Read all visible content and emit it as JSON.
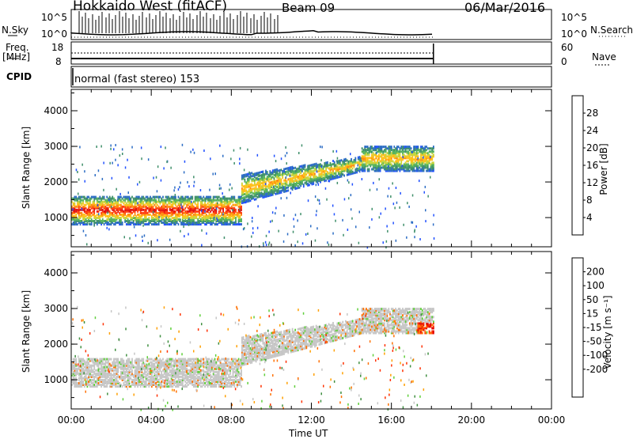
{
  "header": {
    "station": "Hokkaido West (fitACF)",
    "beam": "Beam 09",
    "date": "06/Mar/2016"
  },
  "side_labels": {
    "nsky": "N.Sky",
    "nsearch": "N.Search",
    "freq_top": "Freq.",
    "freq_unit": "[MHz]",
    "nave": "Nave",
    "cpid": "CPID"
  },
  "aux_ticks": {
    "nsky_left": [
      "10^5",
      "10^0"
    ],
    "nsky_right": [
      "10^5",
      "10^0"
    ],
    "freq_left": [
      "18",
      "8"
    ],
    "freq_right": [
      "60",
      "0"
    ]
  },
  "cpid_text": "normal (fast stereo) 153",
  "colors": {
    "power": [
      "#2050ff",
      "#2b6cc4",
      "#3f8f6a",
      "#55b35c",
      "#c8d43c",
      "#ffc018",
      "#ff8a10",
      "#ff4010",
      "#e01010"
    ],
    "velocity": [
      "#2040c0",
      "#2a7fb8",
      "#3f8f40",
      "#5fcf3a",
      "#c6c6c6",
      "#c6c6c6",
      "#ffa000",
      "#ff7000",
      "#ff3000",
      "#e00000"
    ]
  },
  "chart_data": [
    {
      "type": "heatmap",
      "name": "power",
      "xlabel": "",
      "ylabel": "Slant Range [km]",
      "xlim": [
        "00:00",
        "24:00"
      ],
      "ylim": [
        180,
        4600
      ],
      "yticks": [
        "4000",
        "3000",
        "2000",
        "1000"
      ],
      "colorbar": {
        "label": "Power [dB]",
        "ticks": [
          "28",
          "24",
          "20",
          "16",
          "12",
          "8",
          "4"
        ],
        "range": [
          0,
          32
        ]
      },
      "data_end_hour": 18.1,
      "bands": [
        {
          "from_hour": 0,
          "to_hour": 8.5,
          "range_km": [
            800,
            1600
          ],
          "value": "16-24"
        },
        {
          "from_hour": 8.5,
          "to_hour": 14.5,
          "range_km": [
            1400,
            2700
          ],
          "value": "12-20"
        },
        {
          "from_hour": 14.5,
          "to_hour": 18.1,
          "range_km": [
            2300,
            3000
          ],
          "value": "8-16"
        }
      ]
    },
    {
      "type": "heatmap",
      "name": "velocity",
      "xlabel": "Time UT",
      "ylabel": "Slant Range [km]",
      "xlim": [
        "00:00",
        "24:00"
      ],
      "ylim": [
        180,
        4600
      ],
      "xticks": [
        "00:00",
        "04:00",
        "08:00",
        "12:00",
        "16:00",
        "20:00",
        "00:00"
      ],
      "yticks": [
        "4000",
        "3000",
        "2000",
        "1000"
      ],
      "colorbar": {
        "label": "Velocity [m s⁻¹]",
        "ticks": [
          "200",
          "100",
          "50",
          "15",
          "-15",
          "-50",
          "-100",
          "-200"
        ],
        "range": [
          -250,
          250
        ]
      },
      "data_end_hour": 18.1,
      "bands": [
        {
          "from_hour": 0,
          "to_hour": 8.5,
          "range_km": [
            800,
            1600
          ],
          "value": "-15 to 15"
        },
        {
          "from_hour": 8.5,
          "to_hour": 14.5,
          "range_km": [
            1400,
            2700
          ],
          "value": "-15 to 15"
        },
        {
          "from_hour": 14.5,
          "to_hour": 18.1,
          "range_km": [
            2300,
            3000
          ],
          "value": "-15 to 15"
        }
      ]
    }
  ]
}
